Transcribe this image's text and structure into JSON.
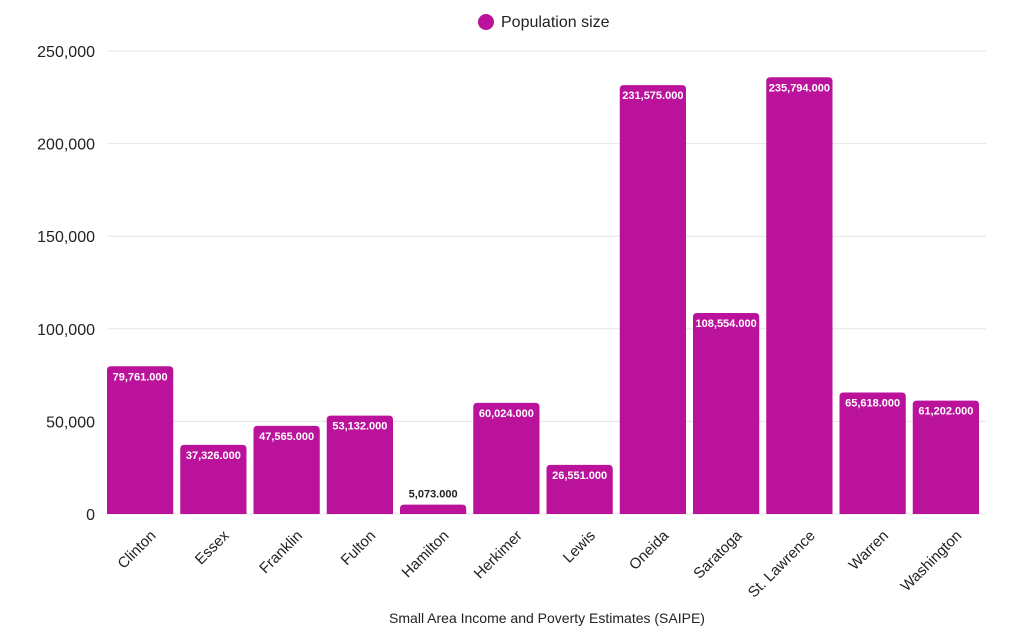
{
  "chart_data": {
    "type": "bar",
    "title": "",
    "xlabel": "Small Area Income and Poverty Estimates (SAIPE)",
    "ylabel": "",
    "ylim": [
      0,
      250000
    ],
    "yticks": [
      0,
      50000,
      100000,
      150000,
      200000,
      250000
    ],
    "ytick_labels": [
      "0",
      "50,000",
      "100,000",
      "150,000",
      "200,000",
      "250,000"
    ],
    "grid": true,
    "legend": {
      "position": "top-center",
      "entries": [
        "Population size"
      ]
    },
    "categories": [
      "Clinton",
      "Essex",
      "Franklin",
      "Fulton",
      "Hamilton",
      "Herkimer",
      "Lewis",
      "Oneida",
      "Saratoga",
      "St. Lawrence",
      "Warren",
      "Washington"
    ],
    "series": [
      {
        "name": "Population size",
        "color": "#bb129c",
        "values": [
          79761,
          37326,
          47565,
          53132,
          5073,
          60024,
          26551,
          231575,
          108554,
          235794,
          65618,
          61202
        ],
        "data_labels": [
          "79,761.000",
          "37,326.000",
          "47,565.000",
          "53,132.000",
          "5,073.000",
          "60,024.000",
          "26,551.000",
          "231,575.000",
          "108,554.000",
          "235,794.000",
          "65,618.000",
          "61,202.000"
        ]
      }
    ]
  },
  "colors": {
    "bar": "#bb129c",
    "grid": "#e6e6e6",
    "text": "#222222",
    "label_inside": "#ffffff"
  }
}
